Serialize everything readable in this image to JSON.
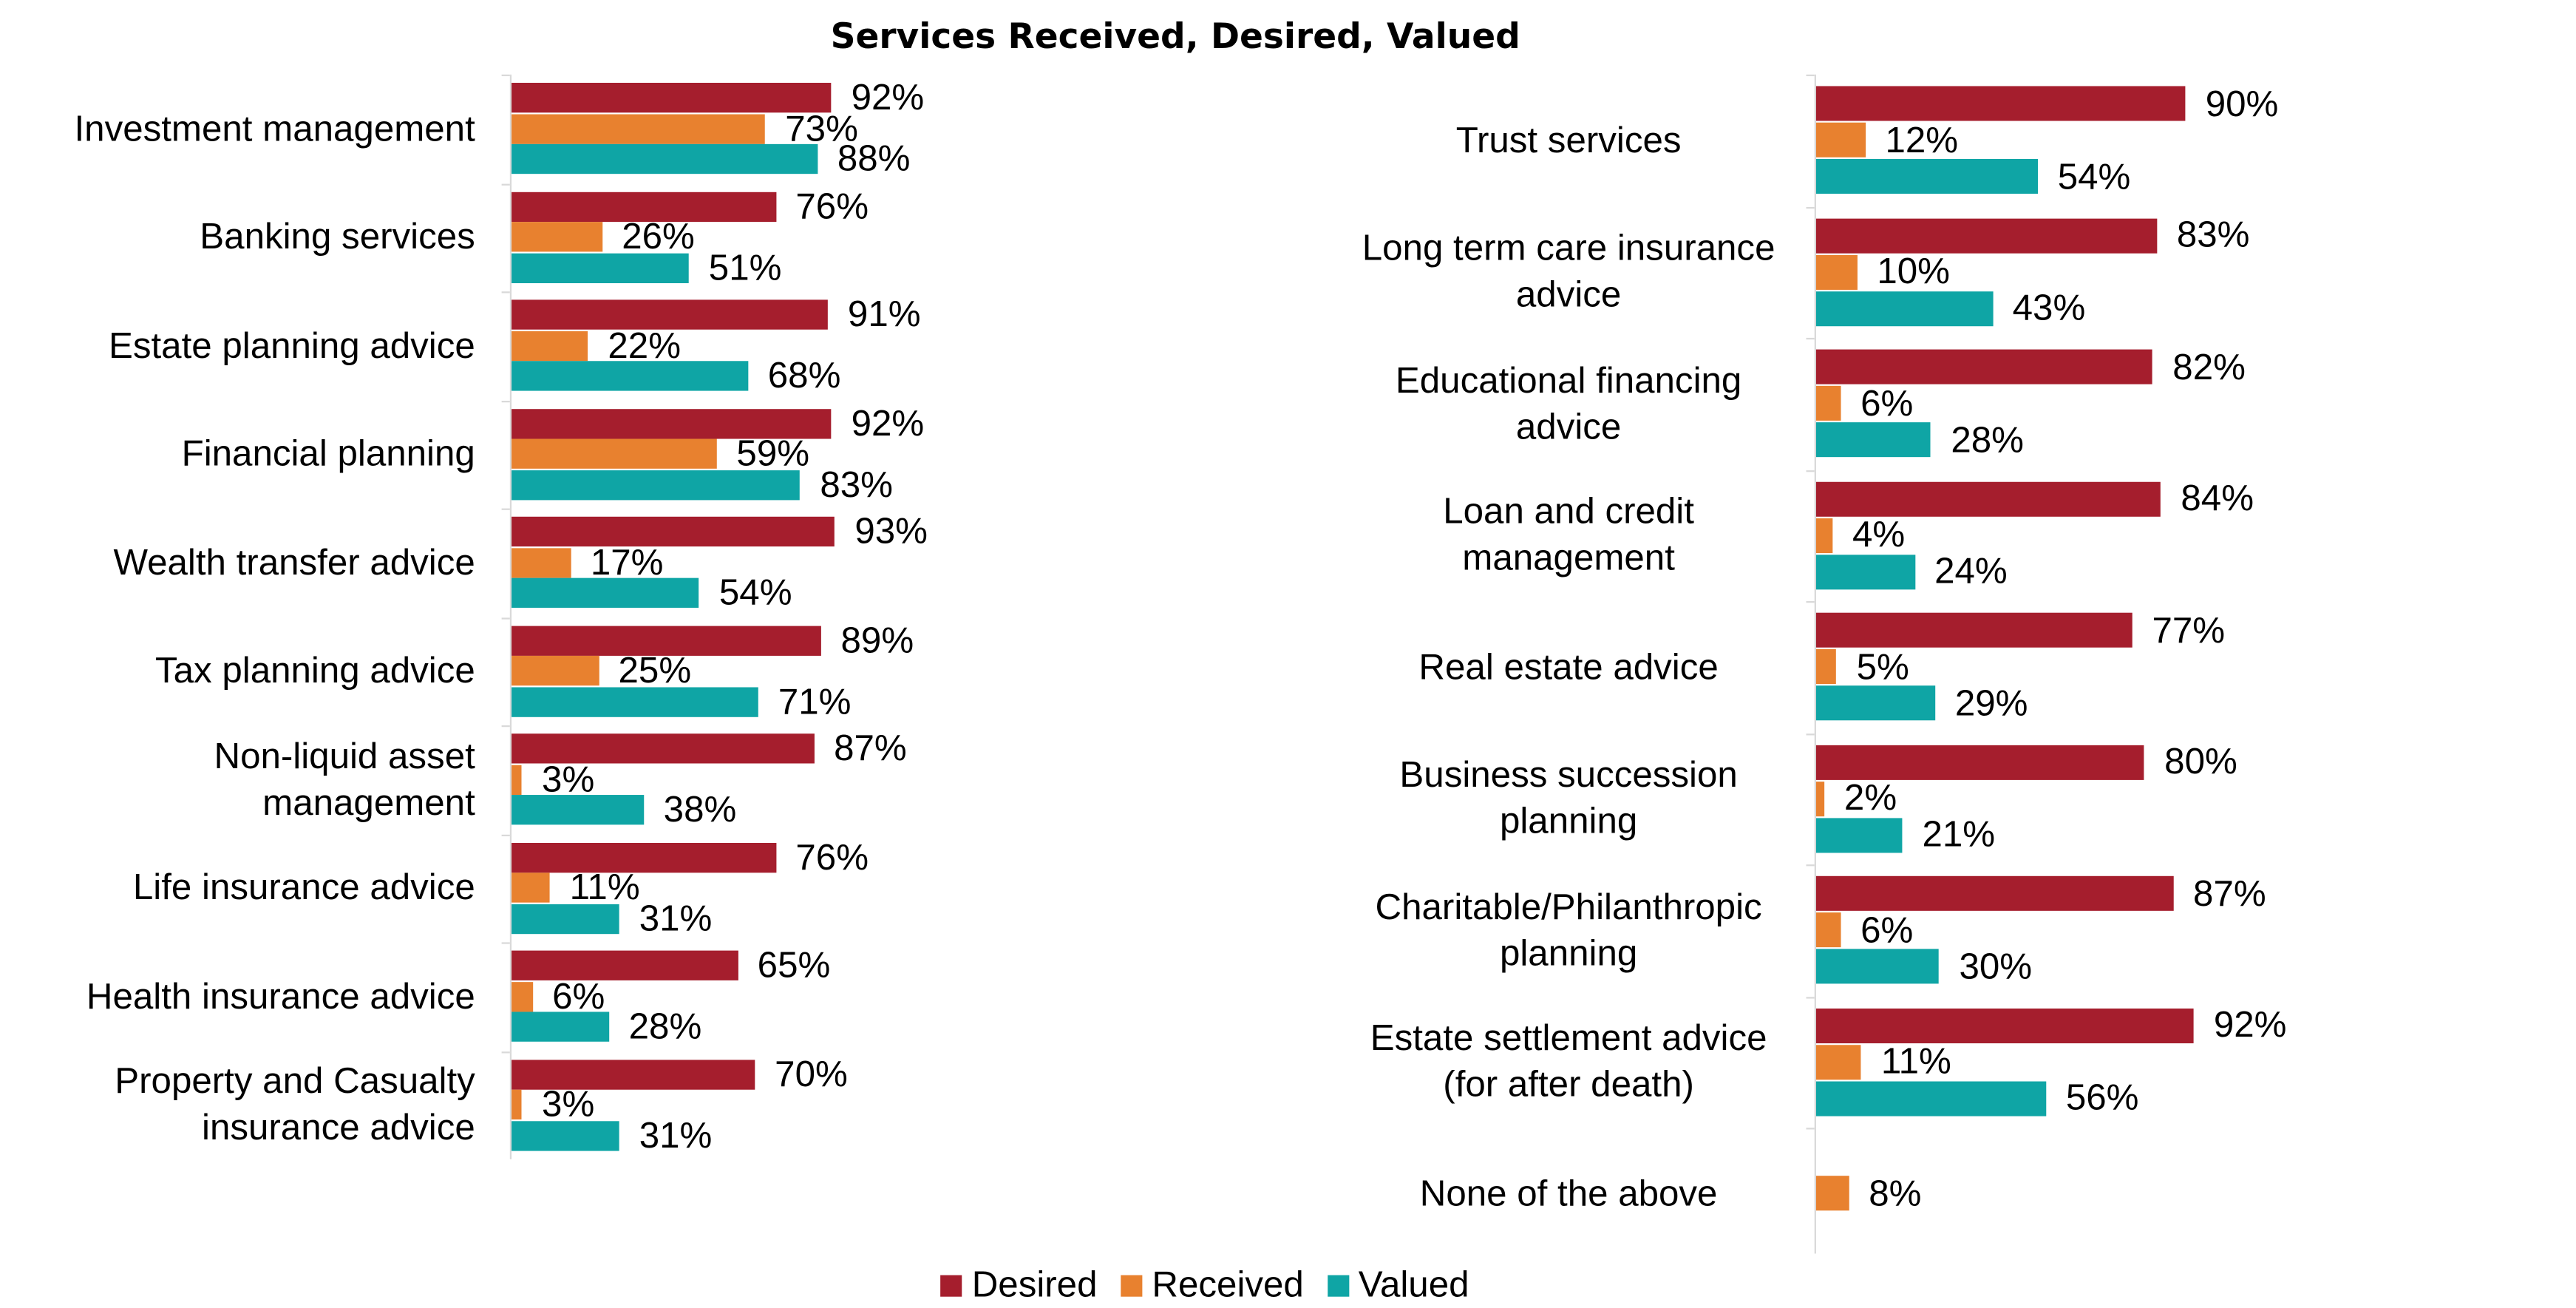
{
  "chart_data": [
    {
      "type": "hbar",
      "title": "Services Received, Desired, Valued",
      "categories": [
        "Investment management",
        "Banking services",
        "Estate planning advice",
        "Financial planning",
        "Wealth transfer advice",
        "Tax planning advice",
        "Non-liquid asset management",
        "Life insurance advice",
        "Health insurance advice",
        "Property and Casualty insurance advice"
      ],
      "series": [
        {
          "name": "Desired",
          "color": "#a51e2d",
          "values": [
            92,
            76,
            91,
            92,
            93,
            89,
            87,
            76,
            65,
            70
          ],
          "value_labels": [
            "92%",
            "76%",
            "91%",
            "92%",
            "93%",
            "89%",
            "87%",
            "76%",
            "65%",
            "70%"
          ]
        },
        {
          "name": "Received",
          "color": "#e8812f",
          "values": [
            73,
            26,
            22,
            59,
            17,
            25,
            3,
            11,
            6,
            3
          ],
          "value_labels": [
            "73%",
            "26%",
            "22%",
            "59%",
            "17%",
            "25%",
            "3%",
            "11%",
            "6%",
            "3%"
          ]
        },
        {
          "name": "Valued",
          "color": "#0fa5a5",
          "values": [
            88,
            51,
            68,
            83,
            54,
            71,
            38,
            31,
            28,
            31
          ],
          "value_labels": [
            "88%",
            "51%",
            "68%",
            "83%",
            "54%",
            "71%",
            "38%",
            "31%",
            "28%",
            "31%"
          ]
        }
      ],
      "xlim": [
        0,
        100
      ]
    },
    {
      "type": "hbar",
      "categories": [
        "Trust services",
        "Long term care insurance advice",
        "Educational financing advice",
        "Loan and credit management",
        "Real estate advice",
        "Business succession planning",
        "Charitable/Philanthropic planning",
        "Estate settlement advice (for after death)",
        "None of the above"
      ],
      "series": [
        {
          "color": "#a51e2d",
          "values": [
            90,
            83,
            82,
            84,
            77,
            80,
            87,
            92,
            null
          ],
          "value_labels": [
            "90%",
            "83%",
            "82%",
            "84%",
            "77%",
            "80%",
            "87%",
            "92%",
            null
          ]
        },
        {
          "color": "#e8812f",
          "values": [
            12,
            10,
            6,
            4,
            5,
            2,
            6,
            11,
            8
          ],
          "value_labels": [
            "12%",
            "10%",
            "6%",
            "4%",
            "5%",
            "2%",
            "6%",
            "11%",
            "8%"
          ]
        },
        {
          "color": "#0fa5a5",
          "values": [
            54,
            43,
            28,
            24,
            29,
            21,
            30,
            56,
            null
          ],
          "value_labels": [
            "54%",
            "43%",
            "28%",
            "24%",
            "29%",
            "21%",
            "30%",
            "56%",
            null
          ]
        }
      ],
      "xlim": [
        0,
        100
      ]
    }
  ]
}
